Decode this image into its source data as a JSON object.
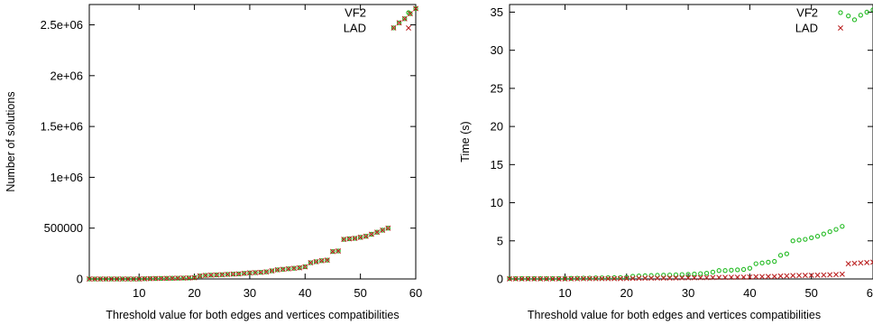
{
  "chart_data": [
    {
      "type": "scatter",
      "title": "",
      "xlabel": "Threshold value for both edges and vertices compatibilities",
      "ylabel": "Number of solutions",
      "xlim": [
        1,
        60
      ],
      "ylim": [
        0,
        2700000
      ],
      "x_ticks": [
        10,
        20,
        30,
        40,
        50,
        60
      ],
      "x_tick_labels": [
        "10",
        "20",
        "30",
        "40",
        "50",
        "60"
      ],
      "y_ticks": [
        0,
        500000,
        1000000,
        1500000,
        2000000,
        2500000
      ],
      "y_tick_labels": [
        "0",
        "500000",
        "1e+06",
        "1.5e+06",
        "2e+06",
        "2.5e+06"
      ],
      "grid": false,
      "legend_position": "top-right",
      "series": [
        {
          "name": "VF2",
          "marker": "circle",
          "color": "#22bb22",
          "x": [
            1,
            2,
            3,
            4,
            5,
            6,
            7,
            8,
            9,
            10,
            11,
            12,
            13,
            14,
            15,
            16,
            17,
            18,
            19,
            20,
            21,
            22,
            23,
            24,
            25,
            26,
            27,
            28,
            29,
            30,
            31,
            32,
            33,
            34,
            35,
            36,
            37,
            38,
            39,
            40,
            41,
            42,
            43,
            44,
            45,
            46,
            47,
            48,
            49,
            50,
            51,
            52,
            53,
            54,
            55,
            56,
            57,
            58,
            59,
            60
          ],
          "values": [
            0,
            0,
            0,
            0,
            0,
            0,
            0,
            0,
            0,
            0,
            2000,
            3000,
            4000,
            5000,
            6000,
            7000,
            8000,
            9000,
            10000,
            12000,
            30000,
            35000,
            38000,
            40000,
            42000,
            45000,
            48000,
            50000,
            55000,
            60000,
            62000,
            65000,
            70000,
            80000,
            90000,
            95000,
            100000,
            105000,
            110000,
            120000,
            160000,
            170000,
            180000,
            185000,
            270000,
            275000,
            390000,
            395000,
            400000,
            410000,
            420000,
            440000,
            460000,
            480000,
            500000,
            2470000,
            2520000,
            2560000,
            2610000,
            2660000
          ]
        },
        {
          "name": "LAD",
          "marker": "x",
          "color": "#bb2222",
          "x": [
            1,
            2,
            3,
            4,
            5,
            6,
            7,
            8,
            9,
            10,
            11,
            12,
            13,
            14,
            15,
            16,
            17,
            18,
            19,
            20,
            21,
            22,
            23,
            24,
            25,
            26,
            27,
            28,
            29,
            30,
            31,
            32,
            33,
            34,
            35,
            36,
            37,
            38,
            39,
            40,
            41,
            42,
            43,
            44,
            45,
            46,
            47,
            48,
            49,
            50,
            51,
            52,
            53,
            54,
            55,
            56,
            57,
            58,
            59,
            60
          ],
          "values": [
            0,
            0,
            0,
            0,
            0,
            0,
            0,
            0,
            0,
            0,
            2000,
            3000,
            4000,
            5000,
            6000,
            7000,
            8000,
            9000,
            10000,
            12000,
            30000,
            35000,
            38000,
            40000,
            42000,
            45000,
            48000,
            50000,
            55000,
            60000,
            62000,
            65000,
            70000,
            80000,
            90000,
            95000,
            100000,
            105000,
            110000,
            120000,
            160000,
            170000,
            180000,
            185000,
            270000,
            275000,
            390000,
            395000,
            400000,
            410000,
            420000,
            440000,
            460000,
            480000,
            500000,
            2470000,
            2520000,
            2560000,
            2610000,
            2660000
          ]
        }
      ]
    },
    {
      "type": "scatter",
      "title": "",
      "xlabel": "Threshold value for both edges and vertices compatibilities",
      "ylabel": "Time (s)",
      "xlim": [
        1,
        60
      ],
      "ylim": [
        0,
        36
      ],
      "x_ticks": [
        10,
        20,
        30,
        40,
        50,
        60
      ],
      "x_tick_labels": [
        "10",
        "20",
        "30",
        "40",
        "50",
        "60"
      ],
      "y_ticks": [
        0,
        5,
        10,
        15,
        20,
        25,
        30,
        35
      ],
      "y_tick_labels": [
        "0",
        "5",
        "10",
        "15",
        "20",
        "25",
        "30",
        "35"
      ],
      "grid": false,
      "legend_position": "top-right",
      "series": [
        {
          "name": "VF2",
          "marker": "circle",
          "color": "#22bb22",
          "x": [
            1,
            2,
            3,
            4,
            5,
            6,
            7,
            8,
            9,
            10,
            11,
            12,
            13,
            14,
            15,
            16,
            17,
            18,
            19,
            20,
            21,
            22,
            23,
            24,
            25,
            26,
            27,
            28,
            29,
            30,
            31,
            32,
            33,
            34,
            35,
            36,
            37,
            38,
            39,
            40,
            41,
            42,
            43,
            44,
            45,
            46,
            47,
            48,
            49,
            50,
            51,
            52,
            53,
            54,
            55,
            56,
            57,
            58,
            59,
            60
          ],
          "values": [
            0.05,
            0.05,
            0.05,
            0.05,
            0.05,
            0.05,
            0.05,
            0.05,
            0.05,
            0.05,
            0.08,
            0.1,
            0.12,
            0.12,
            0.14,
            0.15,
            0.16,
            0.17,
            0.18,
            0.2,
            0.35,
            0.4,
            0.42,
            0.45,
            0.48,
            0.5,
            0.52,
            0.55,
            0.58,
            0.6,
            0.65,
            0.7,
            0.75,
            0.9,
            1.1,
            1.1,
            1.15,
            1.2,
            1.25,
            1.4,
            2.0,
            2.1,
            2.2,
            2.3,
            3.1,
            3.3,
            5.0,
            5.1,
            5.2,
            5.4,
            5.6,
            5.9,
            6.2,
            6.5,
            6.9,
            34.5,
            34.0,
            34.6,
            35.0,
            35.3
          ]
        },
        {
          "name": "LAD",
          "marker": "x",
          "color": "#bb2222",
          "x": [
            1,
            2,
            3,
            4,
            5,
            6,
            7,
            8,
            9,
            10,
            11,
            12,
            13,
            14,
            15,
            16,
            17,
            18,
            19,
            20,
            21,
            22,
            23,
            24,
            25,
            26,
            27,
            28,
            29,
            30,
            31,
            32,
            33,
            34,
            35,
            36,
            37,
            38,
            39,
            40,
            41,
            42,
            43,
            44,
            45,
            46,
            47,
            48,
            49,
            50,
            51,
            52,
            53,
            54,
            55,
            56,
            57,
            58,
            59,
            60
          ],
          "values": [
            0.02,
            0.02,
            0.02,
            0.02,
            0.02,
            0.02,
            0.02,
            0.02,
            0.02,
            0.02,
            0.03,
            0.03,
            0.04,
            0.04,
            0.04,
            0.05,
            0.05,
            0.05,
            0.05,
            0.06,
            0.08,
            0.09,
            0.1,
            0.1,
            0.11,
            0.12,
            0.12,
            0.13,
            0.14,
            0.15,
            0.16,
            0.17,
            0.18,
            0.19,
            0.2,
            0.21,
            0.22,
            0.23,
            0.24,
            0.25,
            0.3,
            0.31,
            0.32,
            0.33,
            0.38,
            0.4,
            0.45,
            0.46,
            0.47,
            0.48,
            0.5,
            0.52,
            0.55,
            0.58,
            0.62,
            2.0,
            2.05,
            2.1,
            2.15,
            2.2
          ]
        }
      ]
    }
  ]
}
